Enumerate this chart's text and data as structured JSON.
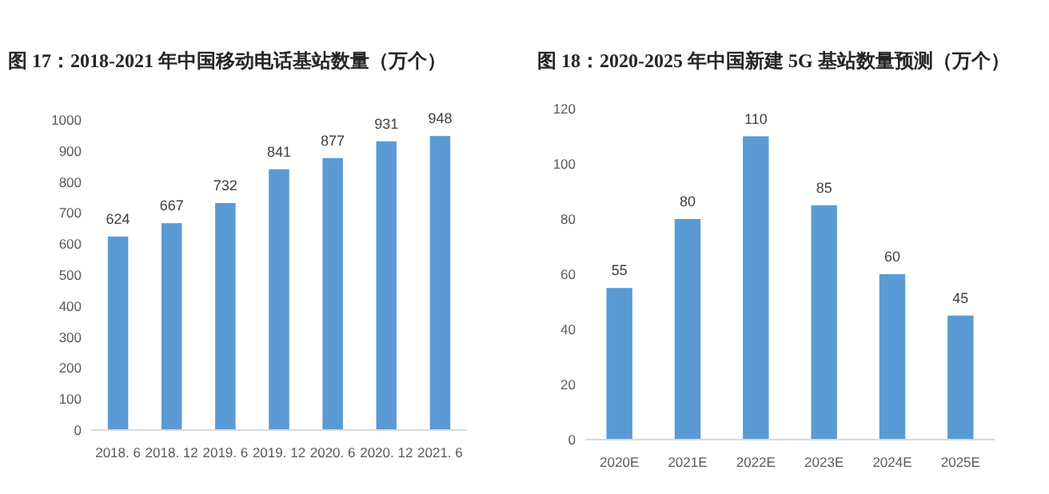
{
  "chart_data": [
    {
      "type": "bar",
      "title": "图 17：2018-2021 年中国移动电话基站数量（万个）",
      "categories": [
        "2018. 6",
        "2018. 12",
        "2019. 6",
        "2019. 12",
        "2020. 6",
        "2020. 12",
        "2021. 6"
      ],
      "values": [
        624,
        667,
        732,
        841,
        877,
        931,
        948
      ],
      "color": "#5b9bd5",
      "ylim": [
        0,
        1000
      ],
      "yticks": [
        0,
        100,
        200,
        300,
        400,
        500,
        600,
        700,
        800,
        900,
        1000
      ],
      "data_labels": true
    },
    {
      "type": "bar",
      "title": "图 18：2020-2025 年中国新建 5G 基站数量预测（万个）",
      "categories": [
        "2020E",
        "2021E",
        "2022E",
        "2023E",
        "2024E",
        "2025E"
      ],
      "values": [
        55,
        80,
        110,
        85,
        60,
        45
      ],
      "color": "#5b9bd5",
      "ylim": [
        0,
        120
      ],
      "yticks": [
        0,
        20,
        40,
        60,
        80,
        100,
        120
      ],
      "data_labels": true
    }
  ]
}
